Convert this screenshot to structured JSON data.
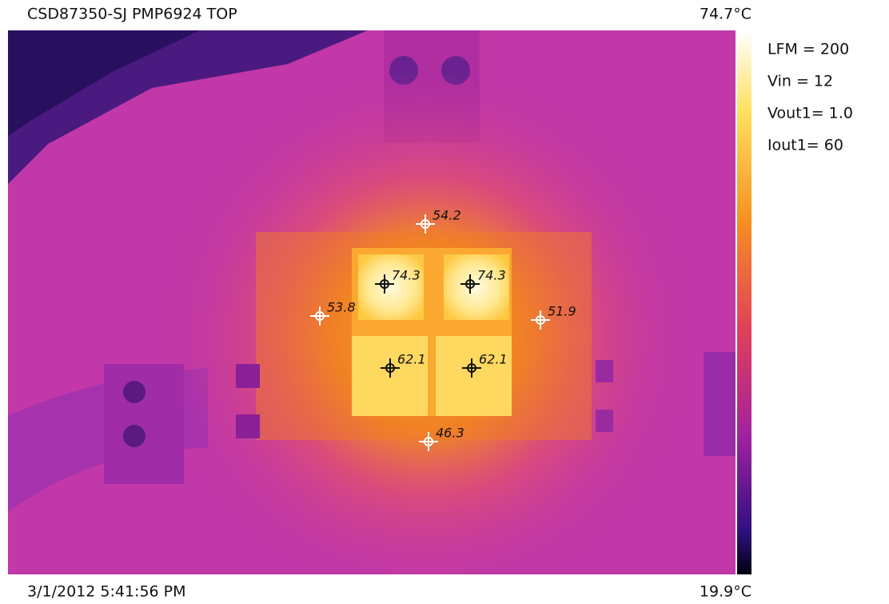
{
  "header": {
    "title": "CSD87350-SJ PMP6924 TOP"
  },
  "scale": {
    "max": "74.7°C",
    "min": "19.9°C"
  },
  "footer": {
    "timestamp": "3/1/2012 5:41:56 PM"
  },
  "conditions": [
    "LFM = 200",
    "Vin = 12",
    "Vout1= 1.0",
    "Iout1= 60"
  ],
  "spots": [
    {
      "label": "54.2"
    },
    {
      "label": "74.3"
    },
    {
      "label": "74.3"
    },
    {
      "label": "53.8"
    },
    {
      "label": "51.9"
    },
    {
      "label": "62.1"
    },
    {
      "label": "62.1"
    },
    {
      "label": "46.3"
    }
  ]
}
